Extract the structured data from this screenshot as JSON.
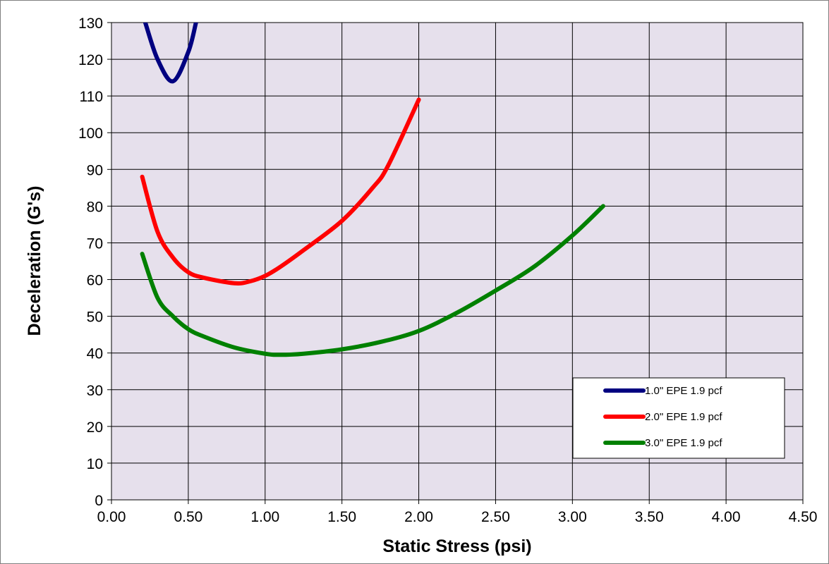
{
  "chart_data": {
    "type": "line",
    "xlabel": "Static Stress (psi)",
    "ylabel": "Deceleration (G's)",
    "xlim": [
      0,
      4.5
    ],
    "ylim": [
      0,
      130
    ],
    "x_ticks": [
      "0.00",
      "0.50",
      "1.00",
      "1.50",
      "2.00",
      "2.50",
      "3.00",
      "3.50",
      "4.00",
      "4.50"
    ],
    "y_ticks": [
      "0",
      "10",
      "20",
      "30",
      "40",
      "50",
      "60",
      "70",
      "80",
      "90",
      "100",
      "110",
      "120",
      "130"
    ],
    "grid": true,
    "plot_background": "#E6E0EC",
    "legend_position": "bottom-right",
    "series": [
      {
        "name": "1.0\" EPE 1.9 pcf",
        "color": "#000080",
        "points": [
          [
            0.22,
            130
          ],
          [
            0.3,
            120
          ],
          [
            0.4,
            114
          ],
          [
            0.5,
            122
          ],
          [
            0.55,
            130
          ]
        ]
      },
      {
        "name": "2.0\" EPE 1.9 pcf",
        "color": "#FF0000",
        "points": [
          [
            0.2,
            88
          ],
          [
            0.3,
            73
          ],
          [
            0.4,
            66
          ],
          [
            0.5,
            62
          ],
          [
            0.6,
            60.5
          ],
          [
            0.8,
            59
          ],
          [
            0.9,
            59.5
          ],
          [
            1.0,
            61
          ],
          [
            1.1,
            63.5
          ],
          [
            1.25,
            68
          ],
          [
            1.5,
            76
          ],
          [
            1.7,
            85
          ],
          [
            1.8,
            91
          ],
          [
            2.0,
            109
          ]
        ]
      },
      {
        "name": "3.0\" EPE 1.9 pcf",
        "color": "#008000",
        "points": [
          [
            0.2,
            67
          ],
          [
            0.3,
            55
          ],
          [
            0.4,
            50
          ],
          [
            0.5,
            46.5
          ],
          [
            0.6,
            44.5
          ],
          [
            0.8,
            41.5
          ],
          [
            1.0,
            39.8
          ],
          [
            1.1,
            39.5
          ],
          [
            1.25,
            39.8
          ],
          [
            1.5,
            41
          ],
          [
            1.75,
            43
          ],
          [
            2.0,
            46
          ],
          [
            2.25,
            51
          ],
          [
            2.5,
            57
          ],
          [
            2.75,
            63.5
          ],
          [
            3.0,
            72
          ],
          [
            3.2,
            80
          ]
        ]
      }
    ]
  }
}
